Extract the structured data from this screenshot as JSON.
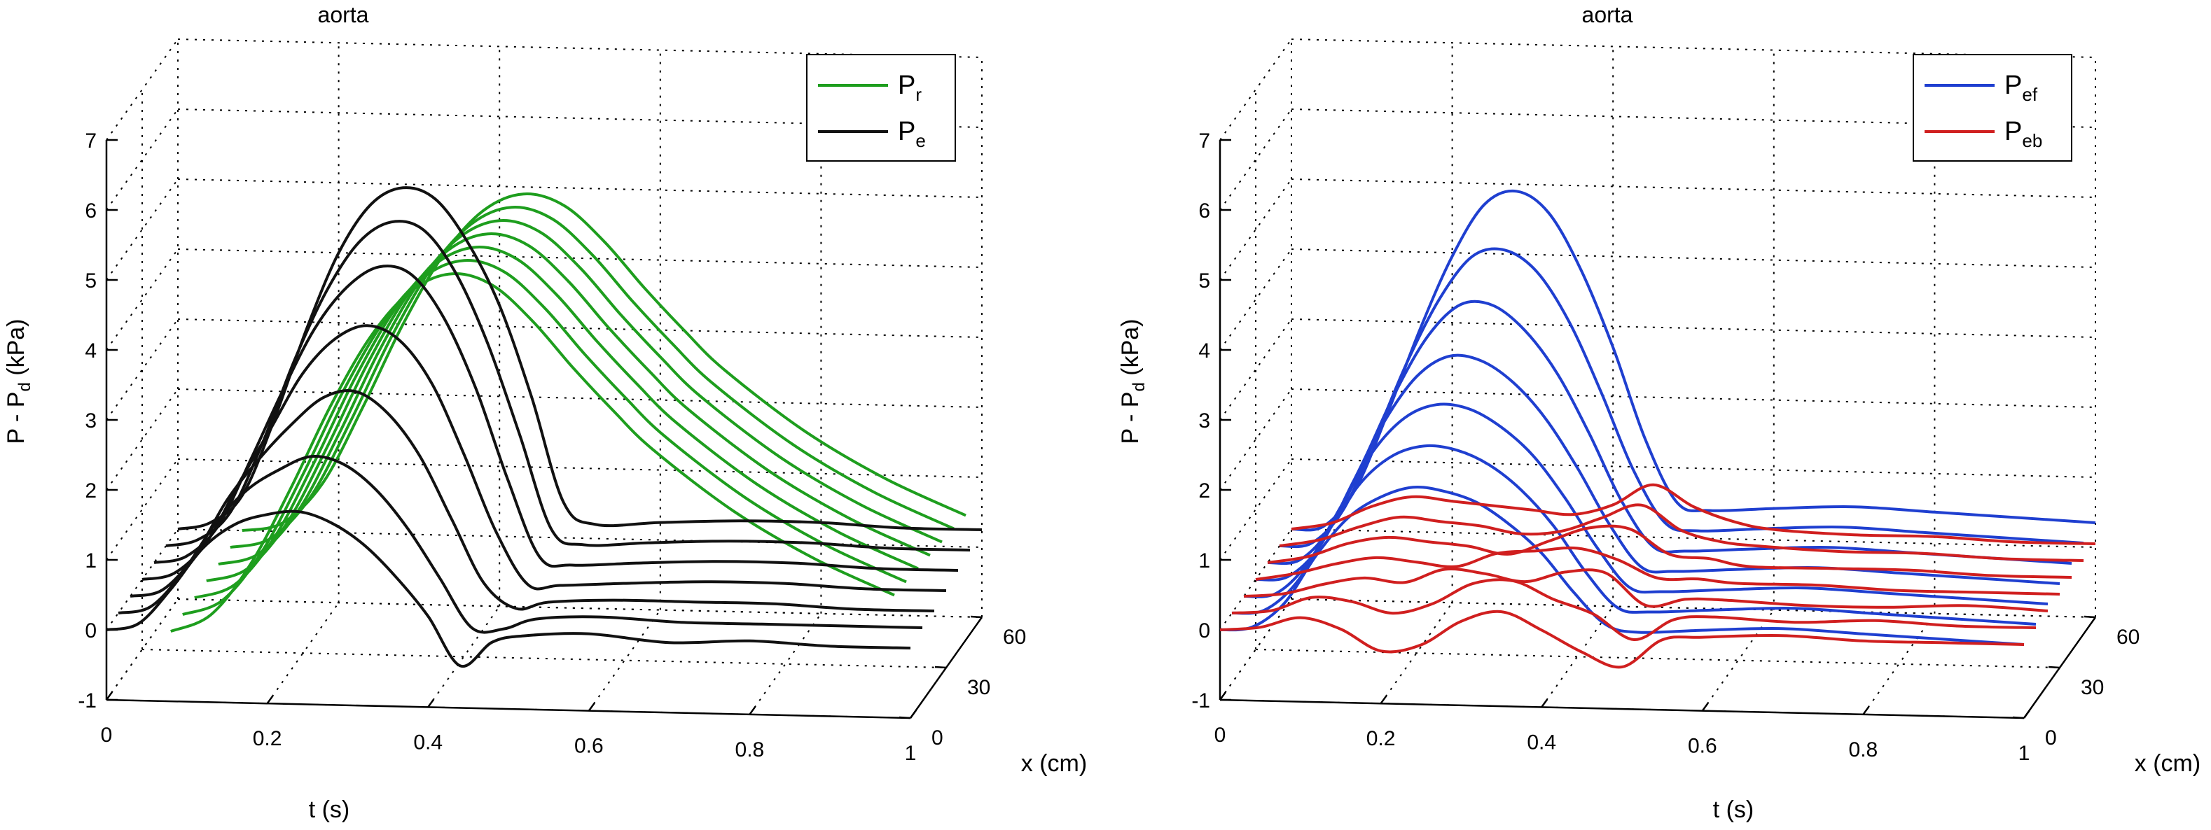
{
  "chart_data": [
    {
      "type": "line",
      "title": "aorta",
      "xlabel": "t (s)",
      "ylabel": "P - P",
      "ylabel_sub": "d",
      "ylabel_unit": " (kPa)",
      "zlabel": "x (cm)",
      "xlim": [
        0,
        1
      ],
      "ylim": [
        -1,
        7
      ],
      "zlim": [
        0,
        60
      ],
      "t_ticks": [
        "0",
        "0.2",
        "0.4",
        "0.6",
        "0.8",
        "1"
      ],
      "p_ticks": [
        "-1",
        "0",
        "1",
        "2",
        "3",
        "4",
        "5",
        "6",
        "7"
      ],
      "x_ticks": [
        "0",
        "30",
        "60"
      ],
      "x_positions": [
        0,
        10,
        20,
        30,
        40,
        50,
        60
      ],
      "legend": [
        {
          "main": "P",
          "sub": "r",
          "color": "#1e9e1e"
        },
        {
          "main": "P",
          "sub": "e",
          "color": "#111111"
        }
      ],
      "series": [
        {
          "name": "P_r",
          "color": "#1e9e1e",
          "t_start": 0.08,
          "t": [
            0,
            0.05,
            0.1,
            0.15,
            0.2,
            0.25,
            0.3,
            0.35,
            0.4,
            0.45,
            0.5,
            0.55,
            0.6,
            0.7,
            0.8,
            0.9
          ],
          "traces": [
            {
              "x": 0,
              "values": [
                0,
                0.25,
                1.0,
                2.1,
                3.3,
                4.3,
                4.95,
                5.2,
                5.05,
                4.55,
                3.9,
                3.3,
                2.75,
                1.9,
                1.25,
                0.75
              ]
            },
            {
              "x": 10,
              "values": [
                0,
                0.22,
                0.95,
                2.05,
                3.25,
                4.25,
                4.9,
                5.15,
                5.0,
                4.5,
                3.85,
                3.25,
                2.7,
                1.85,
                1.2,
                0.7
              ]
            },
            {
              "x": 20,
              "values": [
                0,
                0.2,
                0.9,
                2.0,
                3.2,
                4.2,
                4.85,
                5.1,
                4.95,
                4.45,
                3.8,
                3.2,
                2.65,
                1.8,
                1.15,
                0.65
              ]
            },
            {
              "x": 30,
              "values": [
                0,
                0.18,
                0.85,
                1.95,
                3.15,
                4.15,
                4.8,
                5.05,
                4.9,
                4.4,
                3.75,
                3.15,
                2.6,
                1.75,
                1.1,
                0.6
              ]
            },
            {
              "x": 40,
              "values": [
                0,
                0.16,
                0.8,
                1.9,
                3.1,
                4.1,
                4.75,
                5.0,
                4.85,
                4.35,
                3.7,
                3.1,
                2.55,
                1.7,
                1.05,
                0.55
              ]
            },
            {
              "x": 50,
              "values": [
                0,
                0.14,
                0.75,
                1.85,
                3.05,
                4.05,
                4.7,
                4.95,
                4.8,
                4.3,
                3.65,
                3.05,
                2.5,
                1.65,
                1.0,
                0.5
              ]
            },
            {
              "x": 60,
              "values": [
                0,
                0.12,
                0.7,
                1.8,
                3.0,
                4.0,
                4.65,
                4.9,
                4.75,
                4.25,
                3.6,
                3.0,
                2.45,
                1.6,
                0.95,
                0.45
              ]
            }
          ]
        },
        {
          "name": "P_e",
          "color": "#111111",
          "t_start": 0.0,
          "t": [
            0,
            0.04,
            0.08,
            0.12,
            0.16,
            0.2,
            0.24,
            0.28,
            0.32,
            0.36,
            0.4,
            0.44,
            0.48,
            0.52,
            0.6,
            0.7,
            0.8,
            0.9,
            1.0
          ],
          "traces": [
            {
              "x": 0,
              "values": [
                0,
                0.1,
                0.6,
                1.2,
                1.55,
                1.7,
                1.75,
                1.6,
                1.3,
                0.85,
                0.3,
                -0.4,
                -0.05,
                0.05,
                0.1,
                0.0,
                0.05,
                0.0,
                0.0
              ]
            },
            {
              "x": 10,
              "values": [
                0,
                0.1,
                0.6,
                1.3,
                1.8,
                2.1,
                2.3,
                2.2,
                1.85,
                1.3,
                0.6,
                -0.1,
                -0.1,
                0.05,
                0.1,
                0.05,
                0.05,
                0.05,
                0.05
              ]
            },
            {
              "x": 20,
              "values": [
                0,
                0.1,
                0.6,
                1.4,
                2.0,
                2.5,
                2.9,
                3.0,
                2.7,
                2.1,
                1.2,
                0.3,
                -0.05,
                0.05,
                0.1,
                0.1,
                0.1,
                0.05,
                0.05
              ]
            },
            {
              "x": 30,
              "values": [
                0,
                0.1,
                0.55,
                1.4,
                2.2,
                3.0,
                3.5,
                3.7,
                3.5,
                2.9,
                1.9,
                0.8,
                0.05,
                0.05,
                0.1,
                0.15,
                0.15,
                0.1,
                0.1
              ]
            },
            {
              "x": 40,
              "values": [
                0,
                0.1,
                0.55,
                1.5,
                2.5,
                3.4,
                4.0,
                4.3,
                4.2,
                3.6,
                2.6,
                1.3,
                0.2,
                0.1,
                0.15,
                0.2,
                0.2,
                0.15,
                0.15
              ]
            },
            {
              "x": 50,
              "values": [
                0,
                0.1,
                0.5,
                1.5,
                2.7,
                3.7,
                4.4,
                4.7,
                4.6,
                4.0,
                3.0,
                1.7,
                0.35,
                0.15,
                0.2,
                0.25,
                0.25,
                0.2,
                0.2
              ]
            },
            {
              "x": 60,
              "values": [
                0,
                0.1,
                0.5,
                1.6,
                2.9,
                4.0,
                4.7,
                4.95,
                4.8,
                4.2,
                3.3,
                2.0,
                0.5,
                0.2,
                0.25,
                0.3,
                0.3,
                0.25,
                0.25
              ]
            }
          ]
        }
      ]
    },
    {
      "type": "line",
      "title": "aorta",
      "xlabel": "t (s)",
      "ylabel": "P - P",
      "ylabel_sub": "d",
      "ylabel_unit": " (kPa)",
      "zlabel": "x (cm)",
      "xlim": [
        0,
        1
      ],
      "ylim": [
        -1,
        7
      ],
      "zlim": [
        0,
        60
      ],
      "t_ticks": [
        "0",
        "0.2",
        "0.4",
        "0.6",
        "0.8",
        "1"
      ],
      "p_ticks": [
        "-1",
        "0",
        "1",
        "2",
        "3",
        "4",
        "5",
        "6",
        "7"
      ],
      "x_ticks": [
        "0",
        "30",
        "60"
      ],
      "x_positions": [
        0,
        10,
        20,
        30,
        40,
        50,
        60
      ],
      "legend": [
        {
          "main": "P",
          "sub": "ef",
          "color": "#1f3fd0"
        },
        {
          "main": "P",
          "sub": "eb",
          "color": "#d01f1f"
        }
      ],
      "series": [
        {
          "name": "P_ef",
          "color": "#1f3fd0",
          "t_start": 0.0,
          "t": [
            0,
            0.04,
            0.08,
            0.12,
            0.16,
            0.2,
            0.24,
            0.28,
            0.32,
            0.36,
            0.4,
            0.44,
            0.48,
            0.52,
            0.6,
            0.7,
            0.8,
            0.9,
            1.0
          ],
          "traces": [
            {
              "x": 0,
              "values": [
                0,
                0.05,
                0.4,
                1.1,
                1.65,
                1.95,
                2.1,
                2.05,
                1.9,
                1.6,
                1.2,
                0.65,
                0.2,
                0.1,
                0.15,
                0.2,
                0.15,
                0.1,
                0.05
              ]
            },
            {
              "x": 10,
              "values": [
                0,
                0.05,
                0.45,
                1.2,
                1.9,
                2.3,
                2.45,
                2.4,
                2.2,
                1.85,
                1.35,
                0.7,
                0.2,
                0.15,
                0.2,
                0.25,
                0.2,
                0.15,
                0.1
              ]
            },
            {
              "x": 20,
              "values": [
                0,
                0.05,
                0.5,
                1.3,
                2.1,
                2.6,
                2.8,
                2.75,
                2.5,
                2.1,
                1.5,
                0.8,
                0.25,
                0.2,
                0.25,
                0.3,
                0.25,
                0.2,
                0.15
              ]
            },
            {
              "x": 30,
              "values": [
                0,
                0.05,
                0.5,
                1.4,
                2.3,
                2.95,
                3.25,
                3.2,
                2.9,
                2.4,
                1.7,
                0.9,
                0.3,
                0.25,
                0.3,
                0.35,
                0.3,
                0.25,
                0.2
              ]
            },
            {
              "x": 40,
              "values": [
                0,
                0.05,
                0.55,
                1.5,
                2.5,
                3.3,
                3.75,
                3.75,
                3.4,
                2.8,
                1.95,
                1.0,
                0.35,
                0.3,
                0.35,
                0.4,
                0.35,
                0.3,
                0.25
              ]
            },
            {
              "x": 50,
              "values": [
                0,
                0.05,
                0.55,
                1.6,
                2.7,
                3.6,
                4.2,
                4.3,
                4.0,
                3.3,
                2.3,
                1.2,
                0.45,
                0.35,
                0.4,
                0.45,
                0.4,
                0.35,
                0.3
              ]
            },
            {
              "x": 60,
              "values": [
                0,
                0.05,
                0.6,
                1.7,
                2.9,
                3.95,
                4.7,
                4.9,
                4.6,
                3.8,
                2.7,
                1.4,
                0.5,
                0.4,
                0.45,
                0.5,
                0.45,
                0.4,
                0.35
              ]
            }
          ]
        },
        {
          "name": "P_eb",
          "color": "#d01f1f",
          "t_start": 0.0,
          "t": [
            0,
            0.05,
            0.1,
            0.15,
            0.2,
            0.25,
            0.3,
            0.35,
            0.4,
            0.45,
            0.5,
            0.55,
            0.6,
            0.7,
            0.8,
            0.9,
            1.0
          ],
          "traces": [
            {
              "x": 0,
              "values": [
                0,
                0.05,
                0.2,
                0.05,
                -0.25,
                -0.15,
                0.2,
                0.35,
                0.1,
                -0.2,
                -0.4,
                0.0,
                0.05,
                0.1,
                0.05,
                0.05,
                0.05
              ]
            },
            {
              "x": 10,
              "values": [
                0,
                0.05,
                0.25,
                0.2,
                0.05,
                0.2,
                0.5,
                0.55,
                0.3,
                0.1,
                -0.25,
                0.05,
                0.1,
                0.05,
                0.1,
                0.05,
                0.05
              ]
            },
            {
              "x": 20,
              "values": [
                0,
                0.05,
                0.2,
                0.3,
                0.25,
                0.45,
                0.4,
                0.3,
                0.45,
                0.45,
                0.0,
                0.1,
                0.1,
                0.05,
                0.05,
                0.1,
                0.05
              ]
            },
            {
              "x": 30,
              "values": [
                0,
                0.1,
                0.25,
                0.35,
                0.3,
                0.25,
                0.45,
                0.5,
                0.55,
                0.4,
                0.15,
                0.15,
                0.1,
                0.1,
                0.05,
                0.05,
                0.05
              ]
            },
            {
              "x": 40,
              "values": [
                0,
                0.1,
                0.3,
                0.4,
                0.35,
                0.3,
                0.2,
                0.4,
                0.6,
                0.6,
                0.25,
                0.2,
                0.1,
                0.1,
                0.1,
                0.05,
                0.05
              ]
            },
            {
              "x": 50,
              "values": [
                0,
                0.1,
                0.3,
                0.45,
                0.4,
                0.35,
                0.25,
                0.3,
                0.5,
                0.7,
                0.35,
                0.2,
                0.15,
                0.1,
                0.1,
                0.05,
                0.05
              ]
            },
            {
              "x": 60,
              "values": [
                0,
                0.1,
                0.35,
                0.5,
                0.45,
                0.4,
                0.35,
                0.3,
                0.45,
                0.75,
                0.45,
                0.25,
                0.15,
                0.1,
                0.1,
                0.05,
                0.05
              ]
            }
          ]
        }
      ]
    }
  ]
}
